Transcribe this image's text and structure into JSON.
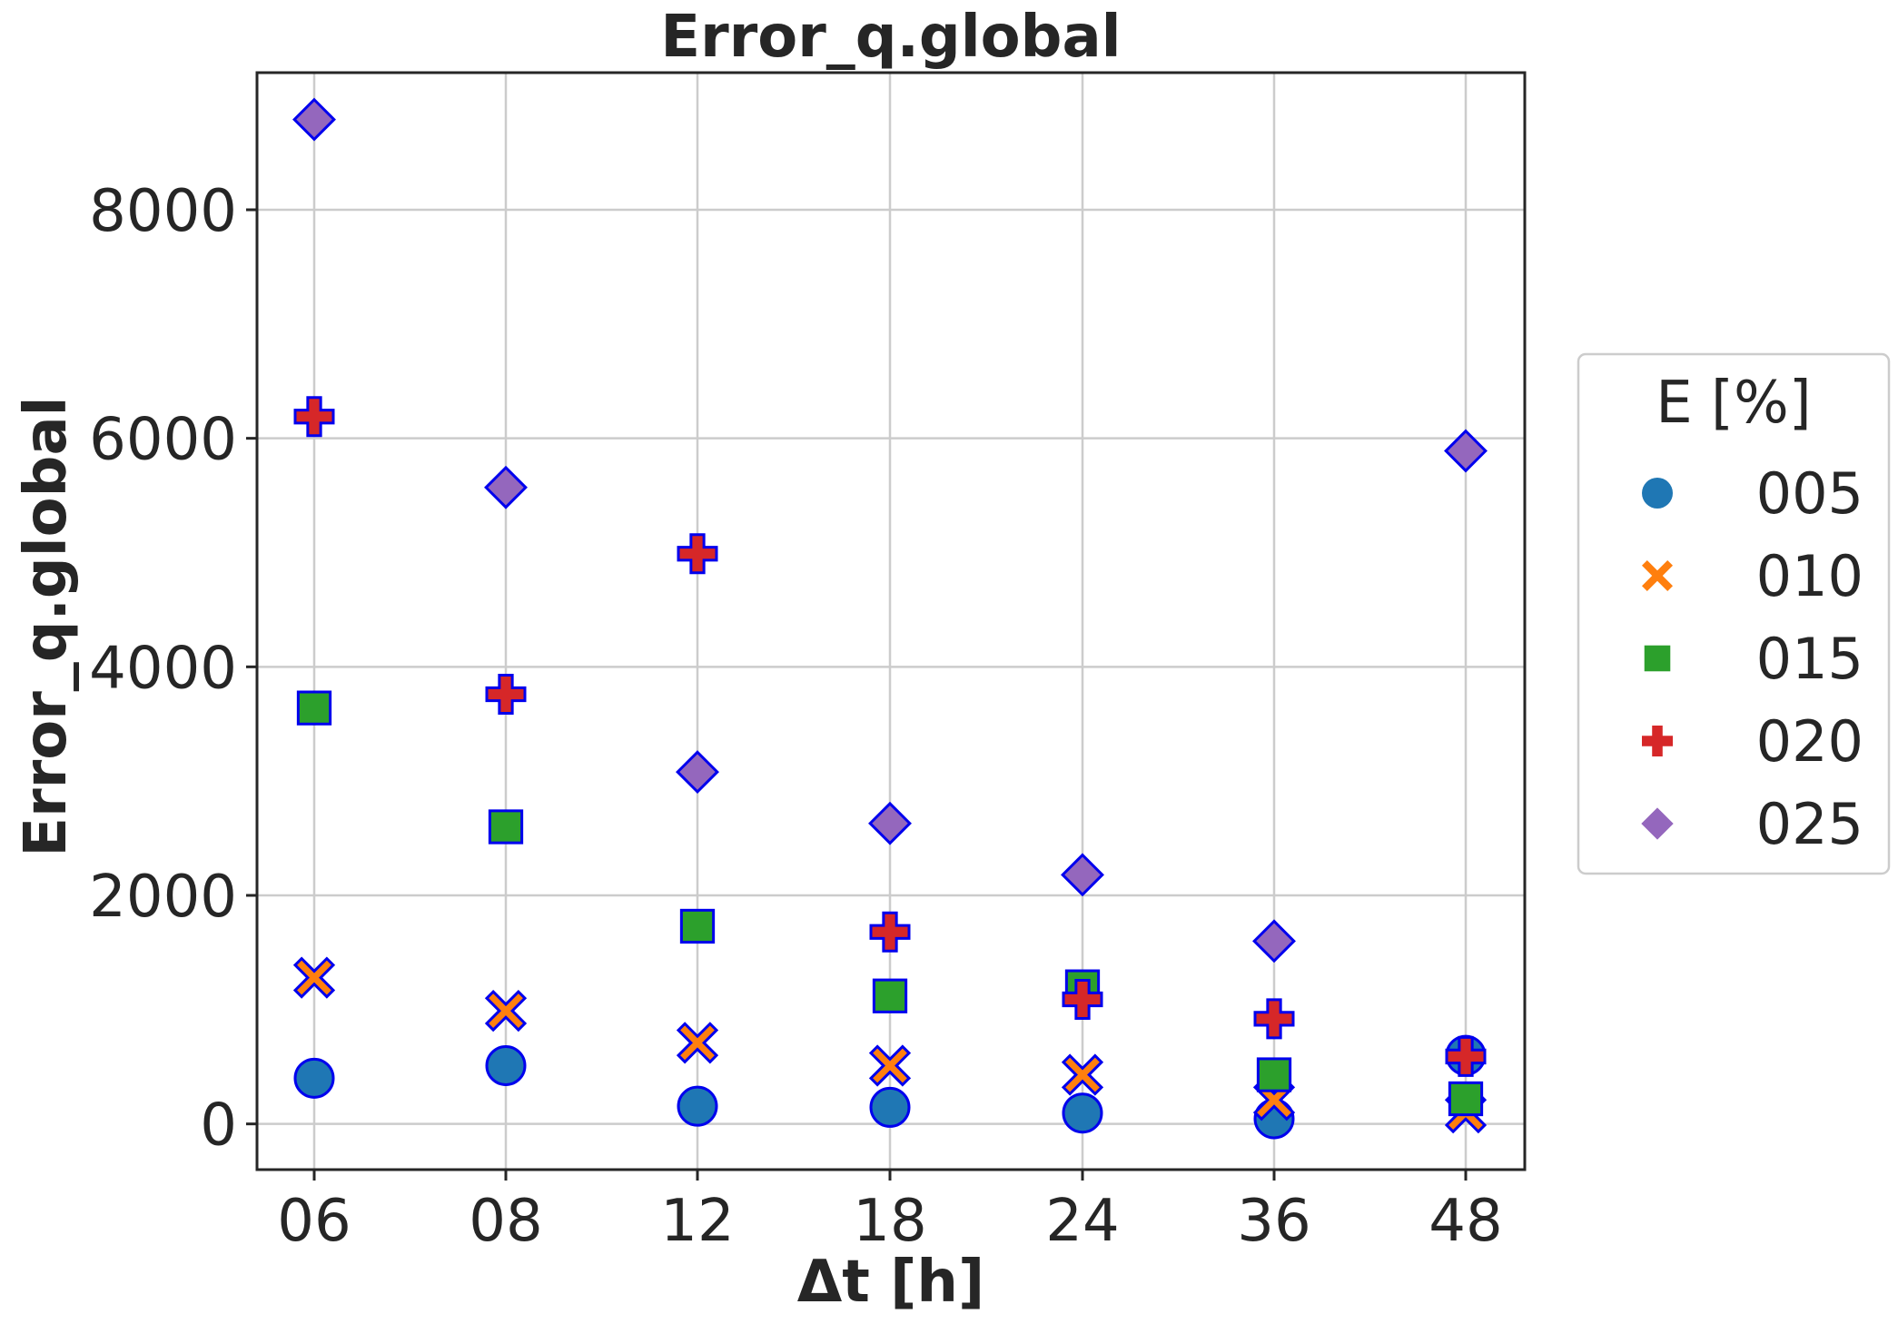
{
  "chart_data": {
    "type": "scatter",
    "title": "Error_q.global",
    "xlabel": "Δt [h]",
    "ylabel": "Error_q.global",
    "categories": [
      "06",
      "08",
      "12",
      "18",
      "24",
      "36",
      "48"
    ],
    "yticks": [
      0,
      2000,
      4000,
      6000,
      8000
    ],
    "ylim": [
      -400,
      9200
    ],
    "grid": true,
    "legend": {
      "title": "E [%]",
      "placement": "center-right outside"
    },
    "series": [
      {
        "name": "005",
        "marker": "circle",
        "color": "#1f77b4",
        "values": [
          400,
          510,
          155,
          145,
          95,
          45,
          600
        ]
      },
      {
        "name": "010",
        "marker": "x",
        "color": "#ff7f0e",
        "values": [
          1280,
          990,
          710,
          510,
          430,
          210,
          100
        ]
      },
      {
        "name": "015",
        "marker": "square",
        "color": "#2ca02c",
        "values": [
          3640,
          2600,
          1730,
          1120,
          1200,
          430,
          220
        ]
      },
      {
        "name": "020",
        "marker": "plus",
        "color": "#d62728",
        "values": [
          6190,
          3760,
          4990,
          1680,
          1090,
          920,
          590
        ]
      },
      {
        "name": "025",
        "marker": "diamond",
        "color": "#9467bd",
        "values": [
          8790,
          5570,
          3080,
          2630,
          2180,
          1600,
          5890
        ]
      }
    ],
    "edge_color": "#0000ee"
  }
}
